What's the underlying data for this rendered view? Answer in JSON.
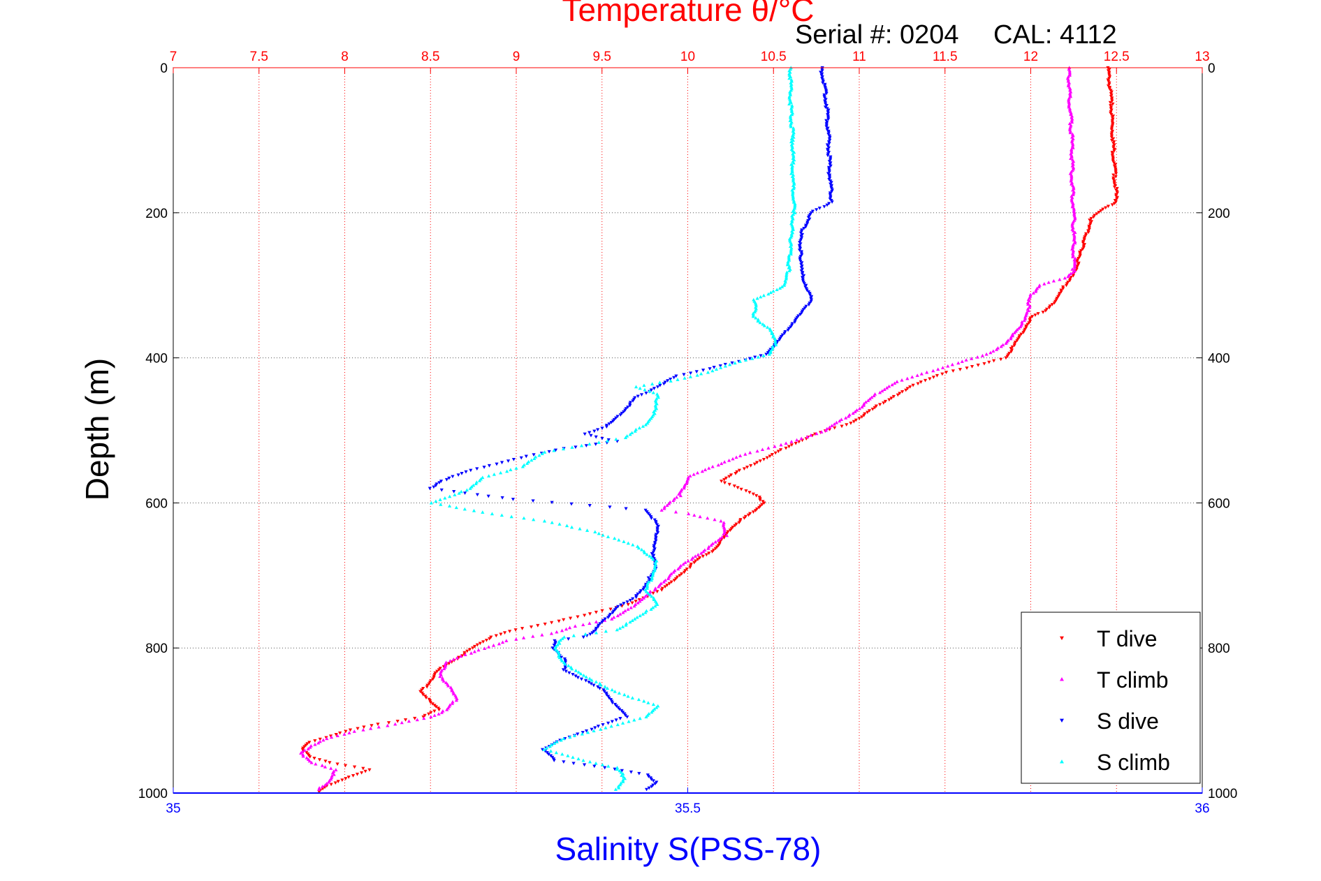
{
  "header": {
    "serial_label": "Serial #: 0204",
    "cal_label": "CAL: 4112"
  },
  "chart_data": {
    "type": "scatter",
    "top_axis": {
      "label": "Temperature θ/°C",
      "range": [
        7,
        13
      ],
      "ticks": [
        7,
        7.5,
        8,
        8.5,
        9,
        9.5,
        10,
        10.5,
        11,
        11.5,
        12,
        12.5,
        13
      ],
      "tick_labels": [
        "7",
        "7.5",
        "8",
        "8.5",
        "9",
        "9.5",
        "10",
        "10.5",
        "11",
        "11.5",
        "12",
        "12.5",
        "13"
      ],
      "color": "#ff0000"
    },
    "bottom_axis": {
      "label": "Salinity S(PSS-78)",
      "range": [
        35,
        36
      ],
      "ticks": [
        35,
        35.5,
        36
      ],
      "tick_labels": [
        "35",
        "35.5",
        "36"
      ],
      "color": "#0000ff"
    },
    "y_axis": {
      "label": "Depth (m)",
      "range": [
        0,
        1000
      ],
      "inverted": true,
      "ticks": [
        0,
        200,
        400,
        600,
        800,
        1000
      ],
      "tick_labels": [
        "0",
        "200",
        "400",
        "600",
        "800",
        "1000"
      ]
    },
    "grid": true,
    "legend_position": "bottom-right",
    "series": [
      {
        "name": "T dive",
        "axis": "temperature",
        "color": "#ff0000",
        "marker": "triangle-down",
        "points": [
          [
            12.45,
            0
          ],
          [
            12.47,
            50
          ],
          [
            12.48,
            100
          ],
          [
            12.49,
            150
          ],
          [
            12.5,
            185
          ],
          [
            12.42,
            195
          ],
          [
            12.35,
            210
          ],
          [
            12.3,
            250
          ],
          [
            12.26,
            280
          ],
          [
            12.2,
            300
          ],
          [
            12.15,
            320
          ],
          [
            12.08,
            335
          ],
          [
            12.0,
            345
          ],
          [
            11.95,
            365
          ],
          [
            11.9,
            385
          ],
          [
            11.85,
            400
          ],
          [
            11.7,
            410
          ],
          [
            11.5,
            420
          ],
          [
            11.3,
            440
          ],
          [
            11.15,
            460
          ],
          [
            11.05,
            475
          ],
          [
            10.95,
            490
          ],
          [
            10.75,
            505
          ],
          [
            10.6,
            520
          ],
          [
            10.45,
            540
          ],
          [
            10.3,
            555
          ],
          [
            10.2,
            570
          ],
          [
            10.4,
            590
          ],
          [
            10.45,
            600
          ],
          [
            10.3,
            625
          ],
          [
            10.2,
            650
          ],
          [
            10.15,
            665
          ],
          [
            10.05,
            680
          ],
          [
            9.95,
            700
          ],
          [
            9.85,
            720
          ],
          [
            9.65,
            740
          ],
          [
            9.4,
            755
          ],
          [
            9.2,
            765
          ],
          [
            9.0,
            775
          ],
          [
            8.85,
            785
          ],
          [
            8.75,
            800
          ],
          [
            8.65,
            815
          ],
          [
            8.55,
            830
          ],
          [
            8.5,
            845
          ],
          [
            8.45,
            860
          ],
          [
            8.5,
            875
          ],
          [
            8.55,
            885
          ],
          [
            8.45,
            895
          ],
          [
            8.2,
            905
          ],
          [
            8.0,
            915
          ],
          [
            7.8,
            930
          ],
          [
            7.75,
            940
          ],
          [
            7.8,
            950
          ],
          [
            7.95,
            960
          ],
          [
            8.15,
            968
          ],
          [
            8.0,
            980
          ],
          [
            7.9,
            990
          ],
          [
            7.85,
            998
          ]
        ]
      },
      {
        "name": "T climb",
        "axis": "temperature",
        "color": "#ff00ff",
        "marker": "triangle-up",
        "points": [
          [
            12.22,
            0
          ],
          [
            12.23,
            50
          ],
          [
            12.24,
            100
          ],
          [
            12.24,
            150
          ],
          [
            12.25,
            200
          ],
          [
            12.25,
            250
          ],
          [
            12.25,
            280
          ],
          [
            12.2,
            290
          ],
          [
            12.05,
            300
          ],
          [
            12.0,
            315
          ],
          [
            11.98,
            335
          ],
          [
            11.95,
            355
          ],
          [
            11.85,
            380
          ],
          [
            11.75,
            395
          ],
          [
            11.6,
            405
          ],
          [
            11.4,
            420
          ],
          [
            11.2,
            435
          ],
          [
            11.1,
            450
          ],
          [
            11.0,
            470
          ],
          [
            10.9,
            485
          ],
          [
            10.8,
            500
          ],
          [
            10.55,
            520
          ],
          [
            10.3,
            535
          ],
          [
            10.15,
            550
          ],
          [
            10.0,
            565
          ],
          [
            9.95,
            590
          ],
          [
            9.85,
            610
          ],
          [
            10.0,
            615
          ],
          [
            10.2,
            625
          ],
          [
            10.22,
            645
          ],
          [
            10.1,
            665
          ],
          [
            10.0,
            680
          ],
          [
            9.9,
            700
          ],
          [
            9.8,
            720
          ],
          [
            9.7,
            740
          ],
          [
            9.55,
            760
          ],
          [
            9.35,
            770
          ],
          [
            9.2,
            780
          ],
          [
            8.95,
            790
          ],
          [
            8.75,
            805
          ],
          [
            8.6,
            820
          ],
          [
            8.55,
            835
          ],
          [
            8.6,
            850
          ],
          [
            8.65,
            870
          ],
          [
            8.6,
            885
          ],
          [
            8.5,
            895
          ],
          [
            8.3,
            905
          ],
          [
            8.05,
            915
          ],
          [
            7.9,
            925
          ],
          [
            7.8,
            935
          ],
          [
            7.75,
            945
          ],
          [
            7.8,
            958
          ],
          [
            7.95,
            968
          ],
          [
            7.9,
            985
          ],
          [
            7.85,
            995
          ]
        ]
      },
      {
        "name": "S dive",
        "axis": "salinity",
        "color": "#0000ff",
        "marker": "triangle-down",
        "points": [
          [
            35.63,
            0
          ],
          [
            35.635,
            50
          ],
          [
            35.637,
            100
          ],
          [
            35.638,
            150
          ],
          [
            35.64,
            185
          ],
          [
            35.62,
            200
          ],
          [
            35.61,
            230
          ],
          [
            35.61,
            260
          ],
          [
            35.61,
            280
          ],
          [
            35.615,
            300
          ],
          [
            35.62,
            320
          ],
          [
            35.61,
            340
          ],
          [
            35.6,
            355
          ],
          [
            35.59,
            375
          ],
          [
            35.575,
            395
          ],
          [
            35.55,
            405
          ],
          [
            35.52,
            415
          ],
          [
            35.49,
            425
          ],
          [
            35.47,
            440
          ],
          [
            35.45,
            455
          ],
          [
            35.44,
            470
          ],
          [
            35.43,
            485
          ],
          [
            35.42,
            495
          ],
          [
            35.4,
            505
          ],
          [
            35.43,
            515
          ],
          [
            35.38,
            525
          ],
          [
            35.33,
            540
          ],
          [
            35.29,
            555
          ],
          [
            35.26,
            570
          ],
          [
            35.25,
            580
          ],
          [
            35.33,
            595
          ],
          [
            35.46,
            610
          ],
          [
            35.47,
            630
          ],
          [
            35.47,
            650
          ],
          [
            35.465,
            670
          ],
          [
            35.47,
            690
          ],
          [
            35.46,
            710
          ],
          [
            35.45,
            730
          ],
          [
            35.43,
            745
          ],
          [
            35.42,
            760
          ],
          [
            35.41,
            775
          ],
          [
            35.4,
            785
          ],
          [
            35.37,
            790
          ],
          [
            35.37,
            800
          ],
          [
            35.38,
            815
          ],
          [
            35.38,
            830
          ],
          [
            35.4,
            845
          ],
          [
            35.42,
            860
          ],
          [
            35.43,
            880
          ],
          [
            35.44,
            895
          ],
          [
            35.41,
            910
          ],
          [
            35.38,
            925
          ],
          [
            35.36,
            940
          ],
          [
            35.37,
            955
          ],
          [
            35.42,
            965
          ],
          [
            35.46,
            975
          ],
          [
            35.47,
            985
          ],
          [
            35.46,
            995
          ]
        ]
      },
      {
        "name": "S climb",
        "axis": "salinity",
        "color": "#00ffff",
        "marker": "triangle-up",
        "points": [
          [
            35.6,
            0
          ],
          [
            35.6,
            50
          ],
          [
            35.602,
            100
          ],
          [
            35.602,
            150
          ],
          [
            35.603,
            200
          ],
          [
            35.6,
            240
          ],
          [
            35.598,
            280
          ],
          [
            35.595,
            300
          ],
          [
            35.58,
            310
          ],
          [
            35.565,
            320
          ],
          [
            35.565,
            345
          ],
          [
            35.58,
            360
          ],
          [
            35.585,
            380
          ],
          [
            35.58,
            395
          ],
          [
            35.55,
            405
          ],
          [
            35.52,
            420
          ],
          [
            35.49,
            430
          ],
          [
            35.45,
            440
          ],
          [
            35.47,
            450
          ],
          [
            35.47,
            470
          ],
          [
            35.46,
            490
          ],
          [
            35.44,
            510
          ],
          [
            35.36,
            530
          ],
          [
            35.34,
            550
          ],
          [
            35.3,
            565
          ],
          [
            35.29,
            580
          ],
          [
            35.25,
            600
          ],
          [
            35.31,
            615
          ],
          [
            35.36,
            625
          ],
          [
            35.41,
            640
          ],
          [
            35.45,
            660
          ],
          [
            35.47,
            680
          ],
          [
            35.465,
            700
          ],
          [
            35.46,
            720
          ],
          [
            35.47,
            740
          ],
          [
            35.45,
            760
          ],
          [
            35.43,
            775
          ],
          [
            35.38,
            785
          ],
          [
            35.37,
            800
          ],
          [
            35.38,
            820
          ],
          [
            35.4,
            840
          ],
          [
            35.43,
            860
          ],
          [
            35.47,
            880
          ],
          [
            35.46,
            895
          ],
          [
            35.42,
            910
          ],
          [
            35.38,
            925
          ],
          [
            35.36,
            940
          ],
          [
            35.4,
            955
          ],
          [
            35.43,
            965
          ],
          [
            35.44,
            980
          ],
          [
            35.43,
            995
          ]
        ]
      }
    ]
  }
}
